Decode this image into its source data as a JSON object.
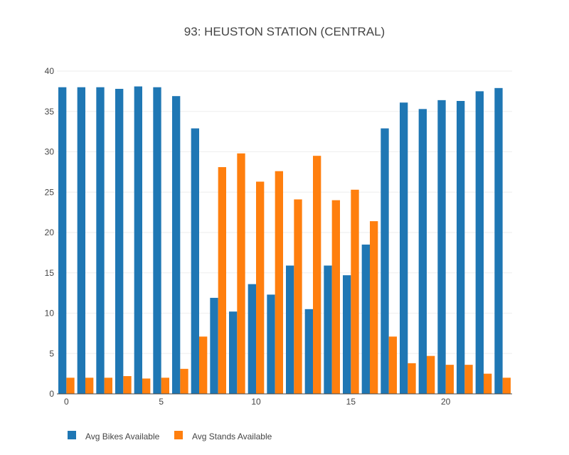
{
  "chart_data": {
    "type": "bar",
    "title": "93: HEUSTON STATION (CENTRAL)",
    "xlabel": "",
    "ylabel": "",
    "x": [
      0,
      1,
      2,
      3,
      4,
      5,
      6,
      7,
      8,
      9,
      10,
      11,
      12,
      13,
      14,
      15,
      16,
      17,
      18,
      19,
      20,
      21,
      22,
      23
    ],
    "xlim": [
      -0.5,
      23.5
    ],
    "ylim": [
      0,
      40
    ],
    "x_ticks": [
      0,
      5,
      10,
      15,
      20
    ],
    "y_ticks": [
      0,
      5,
      10,
      15,
      20,
      25,
      30,
      35,
      40
    ],
    "grid": true,
    "legend_position": "bottom-left",
    "series": [
      {
        "name": "Avg Bikes Available",
        "color": "#1f77b4",
        "values": [
          38.0,
          38.0,
          38.0,
          37.8,
          38.1,
          38.0,
          36.9,
          32.9,
          11.9,
          10.2,
          13.6,
          12.3,
          15.9,
          10.5,
          15.9,
          14.7,
          18.5,
          32.9,
          36.1,
          35.3,
          36.4,
          36.3,
          37.5,
          37.9
        ]
      },
      {
        "name": "Avg Stands Available",
        "color": "#ff7f0e",
        "values": [
          2.0,
          2.0,
          2.0,
          2.2,
          1.9,
          2.0,
          3.1,
          7.1,
          28.1,
          29.8,
          26.3,
          27.6,
          24.1,
          29.5,
          24.0,
          25.3,
          21.4,
          7.1,
          3.8,
          4.7,
          3.6,
          3.6,
          2.5,
          2.0
        ]
      }
    ]
  }
}
